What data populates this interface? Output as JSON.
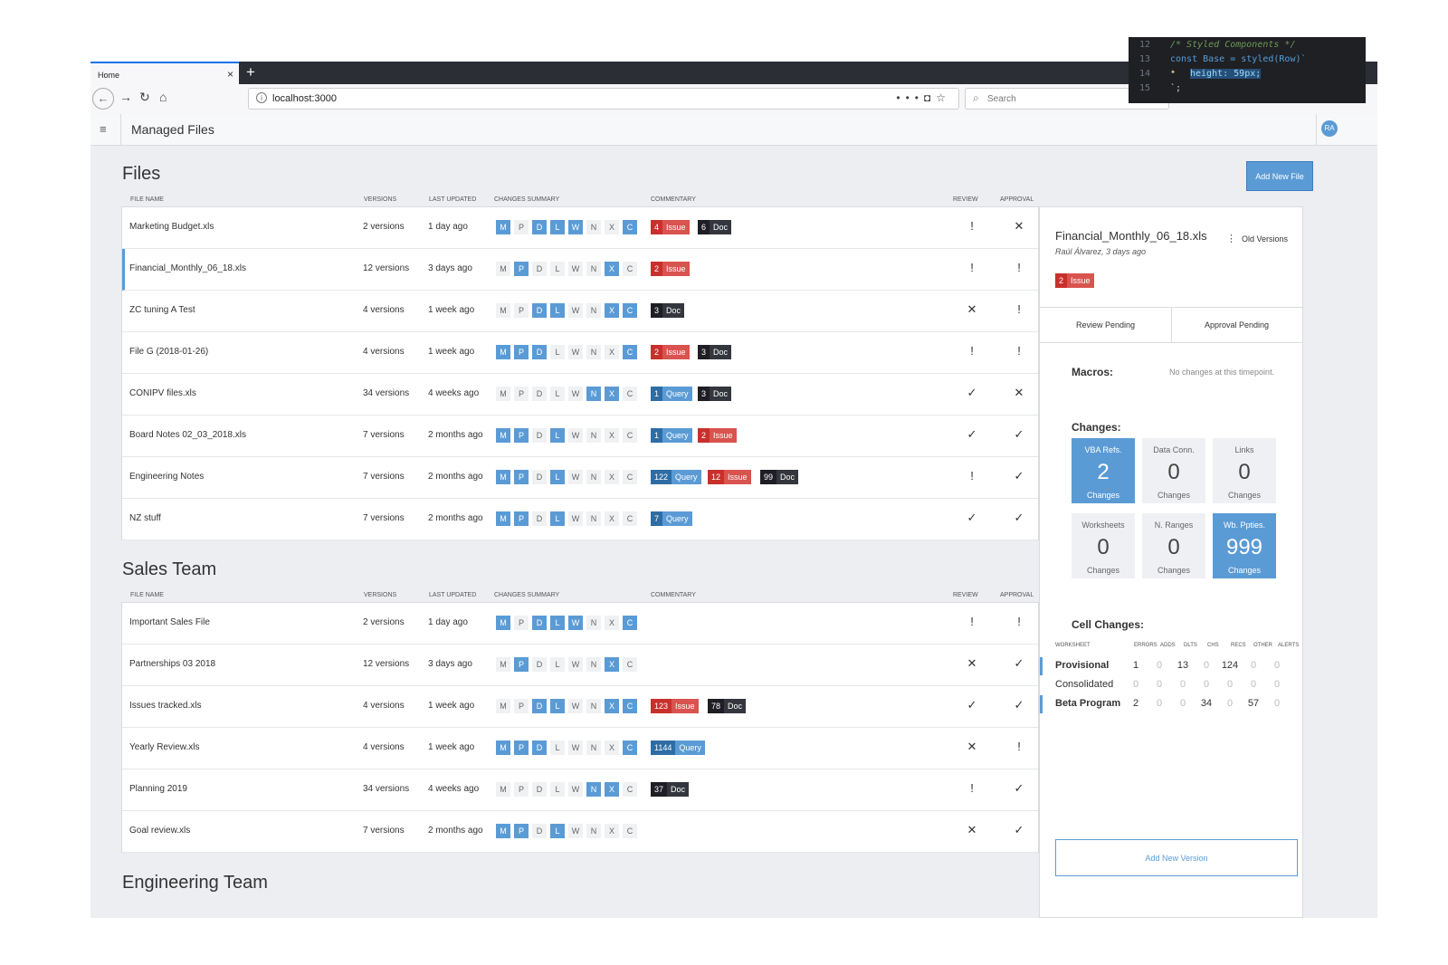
{
  "browser": {
    "tab_title": "Home",
    "url": "localhost:3000",
    "search_placeholder": "Search"
  },
  "app": {
    "title": "Managed Files",
    "avatar_initials": "RA"
  },
  "add_file_label": "Add New File",
  "columns": [
    "FILE NAME",
    "VERSIONS",
    "LAST UPDATED",
    "CHANGES SUMMARY",
    "COMMENTARY",
    "REVIEW",
    "APPROVAL"
  ],
  "chip_letters": [
    "M",
    "P",
    "D",
    "L",
    "W",
    "N",
    "X",
    "C"
  ],
  "sections": [
    {
      "title": "Files",
      "rows": [
        {
          "name": "Marketing Budget.xls",
          "versions": "2 versions",
          "updated": "1 day ago",
          "chips": [
            1,
            0,
            1,
            1,
            1,
            0,
            0,
            1
          ],
          "comments": [
            {
              "type": "issue",
              "count": "4",
              "label": "Issue"
            },
            {
              "type": "doc",
              "count": "6",
              "label": "Doc"
            }
          ],
          "review": "!",
          "approval": "✕"
        },
        {
          "name": "Financial_Monthly_06_18.xls",
          "versions": "12 versions",
          "updated": "3 days ago",
          "chips": [
            0,
            1,
            0,
            0,
            0,
            0,
            1,
            0
          ],
          "comments": [
            {
              "type": "issue",
              "count": "2",
              "label": "Issue"
            }
          ],
          "review": "!",
          "approval": "!",
          "selected": true
        },
        {
          "name": "ZC tuning A Test",
          "versions": "4 versions",
          "updated": "1 week ago",
          "chips": [
            0,
            0,
            1,
            1,
            0,
            0,
            1,
            1
          ],
          "comments": [
            {
              "type": "doc",
              "count": "3",
              "label": "Doc"
            }
          ],
          "review": "✕",
          "approval": "!"
        },
        {
          "name": "File G (2018-01-26)",
          "versions": "4 versions",
          "updated": "1 week ago",
          "chips": [
            1,
            1,
            1,
            0,
            0,
            0,
            0,
            1
          ],
          "comments": [
            {
              "type": "issue",
              "count": "2",
              "label": "Issue"
            },
            {
              "type": "doc",
              "count": "3",
              "label": "Doc"
            }
          ],
          "review": "!",
          "approval": "!"
        },
        {
          "name": "CONIPV files.xls",
          "versions": "34 versions",
          "updated": "4 weeks ago",
          "chips": [
            0,
            0,
            0,
            0,
            0,
            1,
            1,
            0
          ],
          "comments": [
            {
              "type": "query",
              "count": "1",
              "label": "Query"
            },
            {
              "type": "doc",
              "count": "3",
              "label": "Doc"
            }
          ],
          "review": "✓",
          "approval": "✕"
        },
        {
          "name": "Board Notes 02_03_2018.xls",
          "versions": "7 versions",
          "updated": "2 months ago",
          "chips": [
            1,
            1,
            0,
            1,
            0,
            0,
            0,
            0
          ],
          "comments": [
            {
              "type": "query",
              "count": "1",
              "label": "Query"
            },
            {
              "type": "issue",
              "count": "2",
              "label": "Issue"
            }
          ],
          "review": "✓",
          "approval": "✓"
        },
        {
          "name": "Engineering Notes",
          "versions": "7 versions",
          "updated": "2 months ago",
          "chips": [
            1,
            1,
            0,
            1,
            0,
            0,
            0,
            0
          ],
          "comments": [
            {
              "type": "query",
              "count": "122",
              "label": "Query"
            },
            {
              "type": "issue",
              "count": "12",
              "label": "Issue"
            },
            {
              "type": "doc",
              "count": "99",
              "label": "Doc"
            }
          ],
          "review": "!",
          "approval": "✓"
        },
        {
          "name": "NZ stuff",
          "versions": "7 versions",
          "updated": "2 months ago",
          "chips": [
            1,
            1,
            0,
            1,
            0,
            0,
            0,
            0
          ],
          "comments": [
            {
              "type": "query",
              "count": "7",
              "label": "Query"
            }
          ],
          "review": "✓",
          "approval": "✓"
        }
      ]
    },
    {
      "title": "Sales Team",
      "rows": [
        {
          "name": "Important Sales File",
          "versions": "2 versions",
          "updated": "1 day ago",
          "chips": [
            1,
            0,
            1,
            1,
            1,
            0,
            0,
            1
          ],
          "comments": [],
          "review": "!",
          "approval": "!"
        },
        {
          "name": "Partnerships 03 2018",
          "versions": "12 versions",
          "updated": "3 days ago",
          "chips": [
            0,
            1,
            0,
            0,
            0,
            0,
            1,
            0
          ],
          "comments": [],
          "review": "✕",
          "approval": "✓"
        },
        {
          "name": "Issues tracked.xls",
          "versions": "4 versions",
          "updated": "1 week ago",
          "chips": [
            0,
            0,
            1,
            1,
            0,
            0,
            1,
            1
          ],
          "comments": [
            {
              "type": "issue",
              "count": "123",
              "label": "Issue"
            },
            {
              "type": "doc",
              "count": "78",
              "label": "Doc"
            }
          ],
          "review": "✓",
          "approval": "✓"
        },
        {
          "name": "Yearly Review.xls",
          "versions": "4 versions",
          "updated": "1 week ago",
          "chips": [
            1,
            1,
            1,
            0,
            0,
            0,
            0,
            1
          ],
          "comments": [
            {
              "type": "query",
              "count": "1144",
              "label": "Query"
            }
          ],
          "review": "✕",
          "approval": "!"
        },
        {
          "name": "Planning 2019",
          "versions": "34 versions",
          "updated": "4 weeks ago",
          "chips": [
            0,
            0,
            0,
            0,
            0,
            1,
            1,
            0
          ],
          "comments": [
            {
              "type": "doc",
              "count": "37",
              "label": "Doc"
            }
          ],
          "review": "!",
          "approval": "✓"
        },
        {
          "name": "Goal review.xls",
          "versions": "7 versions",
          "updated": "2 months ago",
          "chips": [
            1,
            1,
            0,
            1,
            0,
            0,
            0,
            0
          ],
          "comments": [],
          "review": "✕",
          "approval": "✓"
        }
      ]
    },
    {
      "title": "Engineering Team",
      "rows": []
    }
  ],
  "panel": {
    "file_name": "Financial_Monthly_06_18.xls",
    "meta": "Raúl Álvarez, 3 days ago",
    "old_versions_label": "Old Versions",
    "issue": {
      "count": "2",
      "label": "Issue"
    },
    "tabs": [
      "Review Pending",
      "Approval Pending"
    ],
    "macros_label": "Macros:",
    "macros_msg": "No changes at this timepoint.",
    "changes_label": "Changes:",
    "cards": [
      {
        "title": "VBA Refs.",
        "value": "2",
        "sub": "Changes",
        "active": true
      },
      {
        "title": "Data Conn.",
        "value": "0",
        "sub": "Changes",
        "active": false
      },
      {
        "title": "Links",
        "value": "0",
        "sub": "Changes",
        "active": false
      },
      {
        "title": "Worksheets",
        "value": "0",
        "sub": "Changes",
        "active": false
      },
      {
        "title": "N. Ranges",
        "value": "0",
        "sub": "Changes",
        "active": false
      },
      {
        "title": "Wb. Ppties.",
        "value": "999",
        "sub": "Changes",
        "active": true
      }
    ],
    "cell_changes_label": "Cell Changes:",
    "cc_headers": [
      "WORKSHEET",
      "ERRORS",
      "ADDS",
      "DLTS",
      "CHS",
      "RECS",
      "OTHER",
      "ALERTS"
    ],
    "cc_rows": [
      {
        "name": "Provisional",
        "bold": true,
        "marked": true,
        "values": [
          "1",
          "0",
          "13",
          "0",
          "124",
          "0",
          "0"
        ]
      },
      {
        "name": "Consolidated",
        "bold": false,
        "marked": false,
        "values": [
          "0",
          "0",
          "0",
          "0",
          "0",
          "0",
          "0"
        ]
      },
      {
        "name": "Beta Program",
        "bold": true,
        "marked": true,
        "values": [
          "2",
          "0",
          "0",
          "34",
          "0",
          "57",
          "0"
        ]
      }
    ],
    "add_version_label": "Add New Version"
  },
  "code_overlay": {
    "lines": [
      {
        "no": "12",
        "text": "/* Styled Components */"
      },
      {
        "no": "13",
        "text": "const Base = styled(Row)`"
      },
      {
        "no": "14",
        "text": "height: 59px;"
      },
      {
        "no": "15",
        "text": "`;"
      }
    ]
  }
}
